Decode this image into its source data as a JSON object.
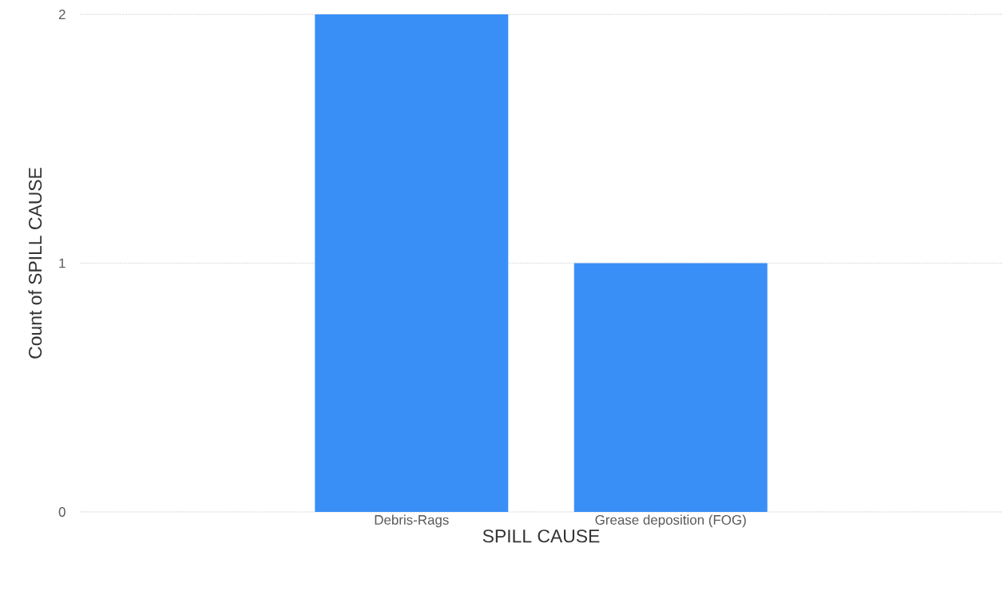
{
  "chart_data": {
    "type": "bar",
    "xlabel": "SPILL CAUSE",
    "ylabel": "Count of SPILL CAUSE",
    "categories": [
      "Debris-Rags",
      "Grease deposition (FOG)"
    ],
    "values": [
      2,
      1
    ],
    "color": "#3a8ff7",
    "ylim": [
      0,
      2
    ],
    "yticks": [
      0,
      1,
      2
    ],
    "grid": "y"
  }
}
